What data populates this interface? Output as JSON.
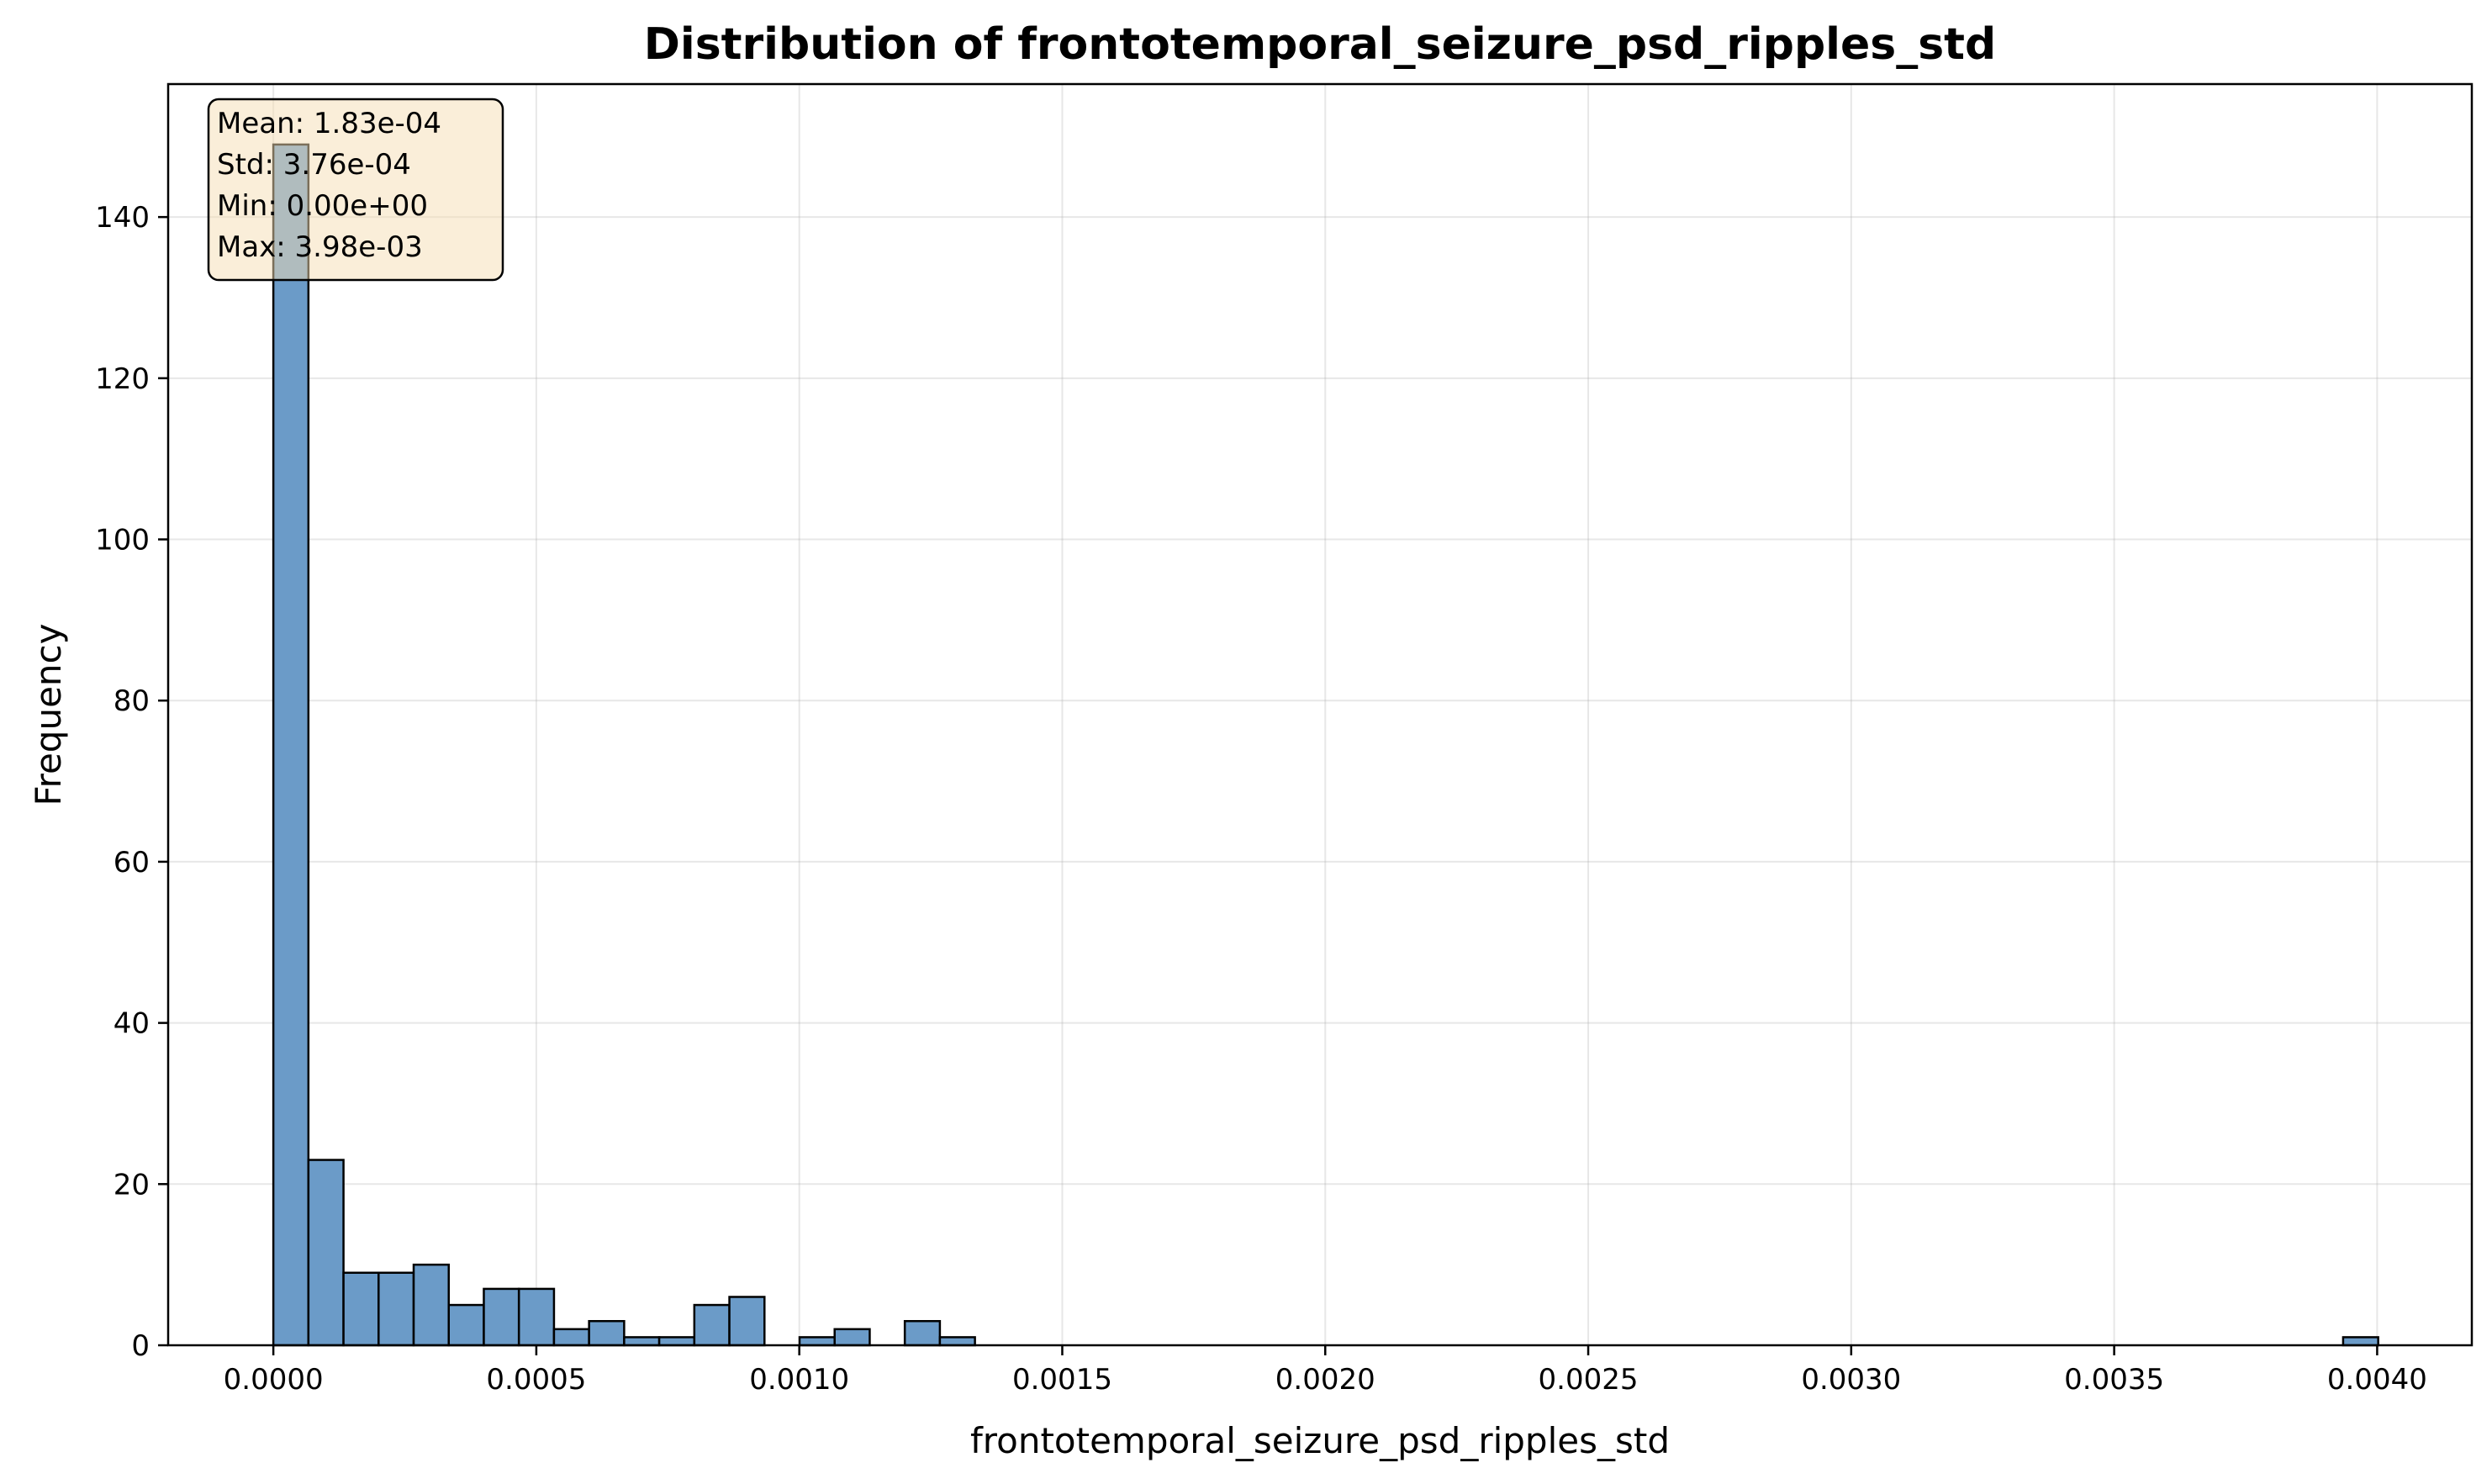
{
  "colors": {
    "bar_fill": "#6b9bc8",
    "bar_stroke": "#000000",
    "stats_box_fill": "#f5deb3",
    "stats_box_stroke": "#000000"
  },
  "chart_data": {
    "type": "bar",
    "subtype": "histogram",
    "title": "Distribution of frontotemporal_seizure_psd_ripples_std",
    "xlabel": "frontotemporal_seizure_psd_ripples_std",
    "ylabel": "Frequency",
    "xlim": [
      -0.0002,
      0.00418
    ],
    "ylim": [
      0,
      156.5
    ],
    "grid": true,
    "bin_start": 0.0,
    "bin_width": 6.67e-05,
    "counts": [
      149,
      23,
      9,
      9,
      10,
      5,
      7,
      7,
      2,
      3,
      1,
      1,
      5,
      6,
      0,
      1,
      2,
      0,
      3,
      1,
      0,
      0,
      0,
      0,
      0,
      0,
      0,
      0,
      0,
      0,
      0,
      0,
      0,
      0,
      0,
      0,
      0,
      0,
      0,
      0,
      0,
      0,
      0,
      0,
      0,
      0,
      0,
      0,
      0,
      0,
      0,
      0,
      0,
      0,
      0,
      0,
      0,
      0,
      0,
      1
    ],
    "x_ticks": [
      0.0,
      0.0005,
      0.001,
      0.0015,
      0.002,
      0.0025,
      0.003,
      0.0035,
      0.004
    ],
    "x_tick_labels": [
      "0.0000",
      "0.0005",
      "0.0010",
      "0.0015",
      "0.0020",
      "0.0025",
      "0.0030",
      "0.0035",
      "0.0040"
    ],
    "y_ticks": [
      0,
      20,
      40,
      60,
      80,
      100,
      120,
      140
    ],
    "y_tick_labels": [
      "0",
      "20",
      "40",
      "60",
      "80",
      "100",
      "120",
      "140"
    ],
    "stats_box": {
      "position": "top-left",
      "lines": [
        "Mean: 1.83e-04",
        "Std: 3.76e-04",
        "Min: 0.00e+00",
        "Max: 3.98e-03"
      ]
    }
  }
}
